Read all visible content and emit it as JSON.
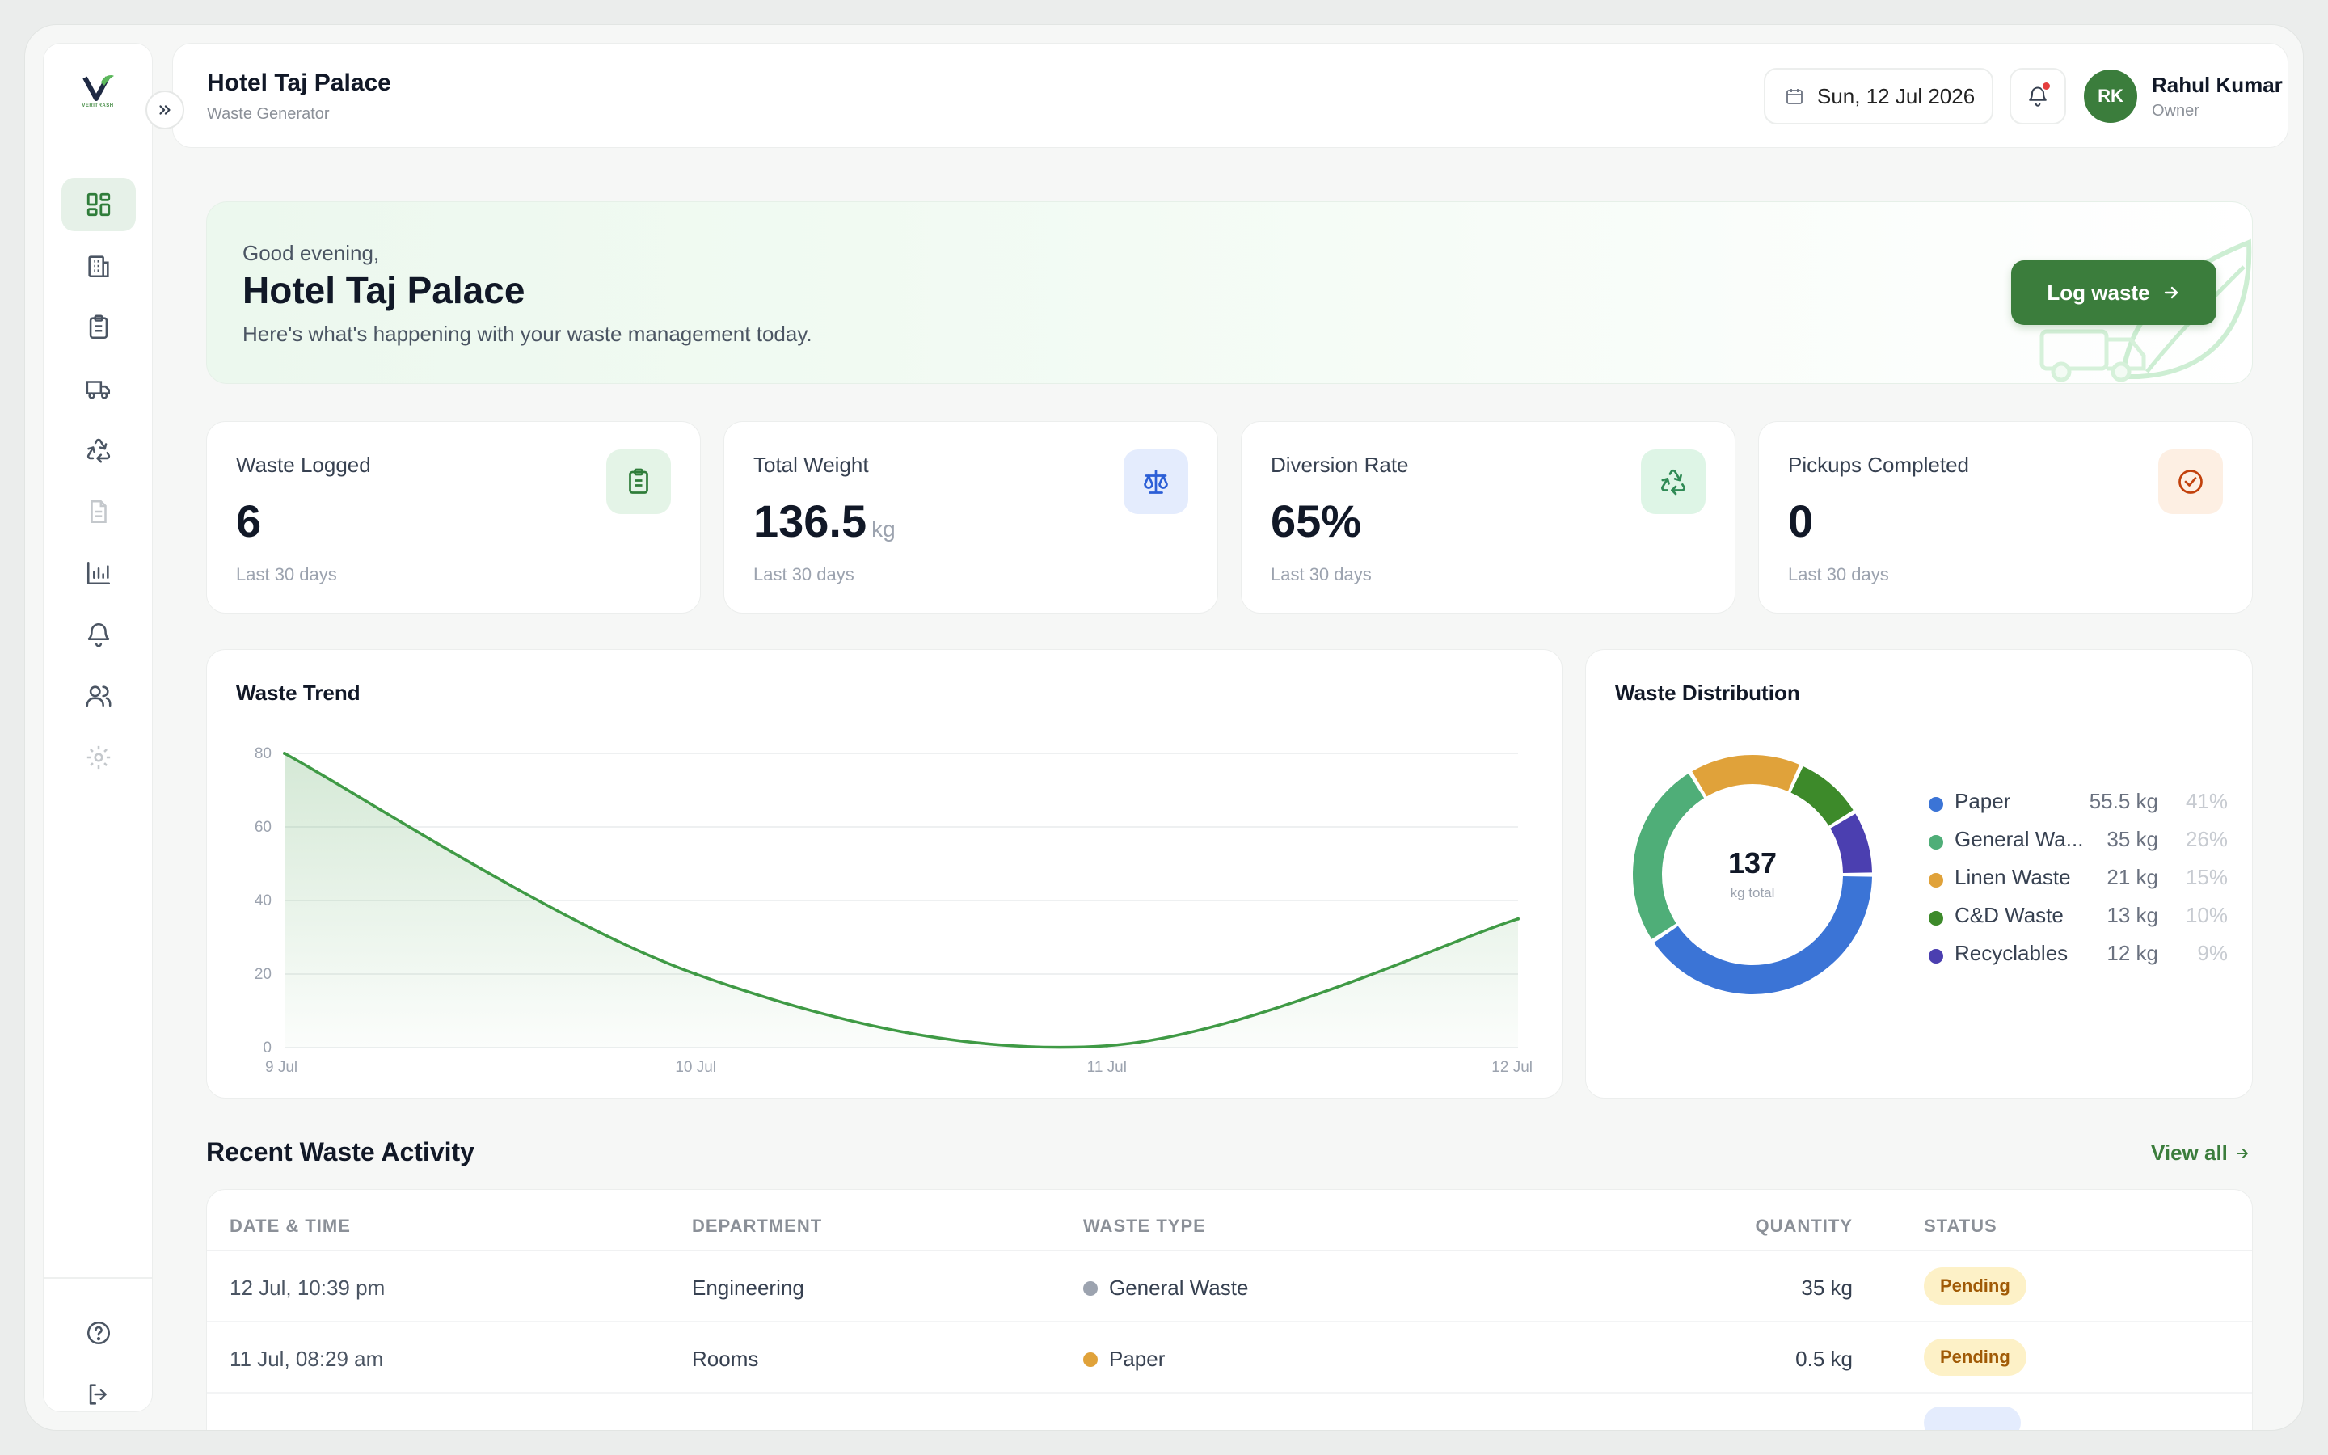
{
  "header": {
    "hotel_name": "Hotel Taj Palace",
    "role": "Waste Generator",
    "date": "Sun, 12 Jul 2026",
    "user_initials": "RK",
    "user_name": "Rahul Kumar",
    "user_role": "Owner"
  },
  "sidebar": {
    "logo_text": "VERITRASH",
    "items": [
      {
        "name": "dashboard",
        "icon": "grid-icon",
        "active": true
      },
      {
        "name": "buildings",
        "icon": "building-icon"
      },
      {
        "name": "waste-log",
        "icon": "clipboard-icon"
      },
      {
        "name": "pickups",
        "icon": "truck-icon"
      },
      {
        "name": "recycling",
        "icon": "recycle-icon"
      },
      {
        "name": "reports",
        "icon": "document-icon"
      },
      {
        "name": "analytics",
        "icon": "bar-chart-icon"
      },
      {
        "name": "notifications",
        "icon": "bell-icon"
      },
      {
        "name": "team",
        "icon": "users-icon"
      },
      {
        "name": "settings",
        "icon": "gear-icon"
      }
    ],
    "footer": [
      {
        "name": "help",
        "icon": "help-circle-icon"
      },
      {
        "name": "logout",
        "icon": "logout-icon"
      }
    ]
  },
  "hero": {
    "greeting": "Good evening,",
    "title": "Hotel Taj Palace",
    "subtitle": "Here's what's happening with your waste management today.",
    "button_label": "Log waste"
  },
  "stats": [
    {
      "label": "Waste Logged",
      "value": "6",
      "unit": "",
      "footer": "Last 30 days",
      "icon": "clipboard-icon",
      "color": "#2f7d3a",
      "bg": "#e4f4e7"
    },
    {
      "label": "Total Weight",
      "value": "136.5",
      "unit": "kg",
      "footer": "Last 30 days",
      "icon": "scale-icon",
      "color": "#2c5fd6",
      "bg": "#e4ecfd"
    },
    {
      "label": "Diversion Rate",
      "value": "65%",
      "unit": "",
      "footer": "Last 30 days",
      "icon": "recycle-icon",
      "color": "#2f8a55",
      "bg": "#def5e6"
    },
    {
      "label": "Pickups Completed",
      "value": "0",
      "unit": "",
      "footer": "Last 30 days",
      "icon": "check-circle-icon",
      "color": "#c2410c",
      "bg": "#fdefe3"
    }
  ],
  "trend": {
    "title": "Waste Trend"
  },
  "distribution": {
    "title": "Waste Distribution",
    "center_value": "137",
    "center_label": "kg total"
  },
  "chart_data": [
    {
      "type": "area",
      "title": "Waste Trend",
      "x": [
        "9 Jul",
        "10 Jul",
        "11 Jul",
        "12 Jul"
      ],
      "series": [
        {
          "values": [
            80,
            20,
            0.5,
            35
          ]
        }
      ],
      "ylim": [
        0,
        80
      ],
      "yticks": [
        0,
        20,
        40,
        60,
        80
      ],
      "grid": true,
      "color": "#3f9a45"
    },
    {
      "type": "pie",
      "title": "Waste Distribution",
      "categories": [
        "Paper",
        "General Wa...",
        "Linen Waste",
        "C&D Waste",
        "Recyclables"
      ],
      "kg_labels": [
        "55.5 kg",
        "35 kg",
        "21 kg",
        "13 kg",
        "12 kg"
      ],
      "pct_labels": [
        "41%",
        "26%",
        "15%",
        "10%",
        "9%"
      ],
      "values": [
        55.5,
        35,
        21,
        13,
        12
      ],
      "colors": [
        "#3b74d6",
        "#4fae78",
        "#e0a23a",
        "#3d8a2a",
        "#4b3fb0"
      ],
      "legend": "right"
    }
  ],
  "activity": {
    "title": "Recent Waste Activity",
    "view_all": "View all",
    "columns": [
      "DATE & TIME",
      "DEPARTMENT",
      "WASTE TYPE",
      "QUANTITY",
      "STATUS"
    ],
    "rows": [
      {
        "datetime": "12 Jul, 10:39 pm",
        "department": "Engineering",
        "type": "General Waste",
        "type_color": "#9ca3af",
        "quantity": "35 kg",
        "status": "Pending"
      },
      {
        "datetime": "11 Jul, 08:29 am",
        "department": "Rooms",
        "type": "Paper",
        "type_color": "#e0a23a",
        "quantity": "0.5 kg",
        "status": "Pending"
      }
    ]
  }
}
